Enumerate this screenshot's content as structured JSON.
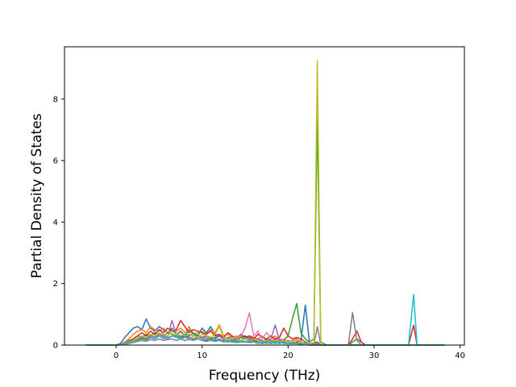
{
  "chart_data": {
    "type": "line",
    "title": "",
    "xlabel": "Frequency (THz)",
    "ylabel": "Partial Density of States",
    "xlim": [
      -6,
      40.5
    ],
    "ylim": [
      0,
      9.7
    ],
    "xticks": [
      0,
      10,
      20,
      30,
      40
    ],
    "yticks": [
      0,
      2,
      4,
      6,
      8
    ],
    "grid": false,
    "legend": "none",
    "x": [
      -3.5,
      -2,
      -1,
      0,
      0.5,
      1,
      1.5,
      2,
      2.5,
      3,
      3.5,
      4,
      4.5,
      5,
      5.5,
      6,
      6.5,
      7,
      7.5,
      8,
      8.5,
      9,
      9.5,
      10,
      10.5,
      11,
      11.5,
      12,
      12.5,
      13,
      13.5,
      14,
      14.5,
      15,
      15.5,
      16,
      16.5,
      17,
      17.5,
      18,
      18.5,
      19,
      19.5,
      20,
      20.5,
      21,
      21.5,
      22,
      22.5,
      23,
      23.4,
      23.8,
      24.5,
      25,
      26,
      27,
      27.5,
      28,
      28.5,
      29,
      30,
      31,
      32,
      33,
      34,
      34.6,
      35,
      36,
      37,
      38.2
    ],
    "series": [
      {
        "color": "#1f77b4",
        "values": [
          0,
          0,
          0,
          0,
          0.05,
          0.25,
          0.4,
          0.55,
          0.6,
          0.5,
          0.85,
          0.55,
          0.45,
          0.6,
          0.5,
          0.4,
          0.55,
          0.35,
          0.45,
          0.3,
          0.5,
          0.35,
          0.3,
          0.55,
          0.4,
          0.6,
          0.35,
          0.3,
          0.25,
          0.2,
          0.3,
          0.15,
          0.25,
          0.3,
          0.2,
          0.15,
          0.2,
          0.1,
          0.15,
          0.1,
          0.2,
          0.1,
          0.15,
          0.1,
          0.05,
          0.1,
          0.15,
          1.3,
          0.05,
          0.05,
          0.05,
          0,
          0,
          0,
          0,
          0,
          0,
          0,
          0,
          0,
          0,
          0,
          0,
          0,
          0,
          0,
          0,
          0,
          0,
          0
        ]
      },
      {
        "color": "#ff7f0e",
        "values": [
          0,
          0,
          0,
          0,
          0.02,
          0.1,
          0.2,
          0.35,
          0.45,
          0.5,
          0.4,
          0.6,
          0.5,
          0.45,
          0.55,
          0.4,
          0.5,
          0.45,
          0.55,
          0.4,
          0.6,
          0.35,
          0.4,
          0.45,
          0.35,
          0.5,
          0.4,
          0.65,
          0.3,
          0.35,
          0.2,
          0.3,
          0.25,
          0.2,
          0.3,
          0.25,
          0.2,
          0.3,
          0.15,
          0.2,
          0.3,
          0.15,
          0.2,
          0.1,
          0.15,
          0.2,
          0.1,
          0.05,
          0.05,
          0.05,
          0.05,
          0,
          0,
          0,
          0,
          0,
          0,
          0,
          0,
          0,
          0,
          0,
          0,
          0,
          0,
          0,
          0,
          0,
          0,
          0
        ]
      },
      {
        "color": "#2ca02c",
        "values": [
          0,
          0,
          0,
          0,
          0.02,
          0.05,
          0.15,
          0.2,
          0.3,
          0.25,
          0.35,
          0.3,
          0.4,
          0.35,
          0.3,
          0.4,
          0.35,
          0.3,
          0.25,
          0.35,
          0.3,
          0.4,
          0.3,
          0.25,
          0.3,
          0.2,
          0.25,
          0.3,
          0.2,
          0.25,
          0.2,
          0.15,
          0.25,
          0.2,
          0.15,
          0.2,
          0.15,
          0.1,
          0.2,
          0.15,
          0.1,
          0.2,
          0.15,
          0.3,
          0.85,
          1.35,
          0.4,
          0.2,
          0.1,
          0.2,
          7.35,
          0.1,
          0,
          0,
          0,
          0,
          0.1,
          0.2,
          0.1,
          0,
          0,
          0,
          0,
          0,
          0,
          0,
          0,
          0,
          0,
          0
        ]
      },
      {
        "color": "#d62728",
        "values": [
          0,
          0,
          0,
          0,
          0.02,
          0.05,
          0.1,
          0.2,
          0.3,
          0.4,
          0.3,
          0.45,
          0.35,
          0.5,
          0.4,
          0.55,
          0.45,
          0.5,
          0.8,
          0.6,
          0.4,
          0.5,
          0.45,
          0.4,
          0.35,
          0.45,
          0.3,
          0.35,
          0.25,
          0.4,
          0.3,
          0.2,
          0.35,
          0.25,
          0.3,
          0.2,
          0.35,
          0.25,
          0.2,
          0.3,
          0.2,
          0.25,
          0.55,
          0.3,
          0.2,
          0.25,
          0.2,
          0.1,
          0.05,
          0.05,
          0.1,
          0,
          0,
          0,
          0,
          0,
          0.2,
          0.45,
          0.1,
          0,
          0,
          0,
          0,
          0,
          0,
          0.65,
          0,
          0,
          0,
          0
        ]
      },
      {
        "color": "#9467bd",
        "values": [
          0,
          0,
          0,
          0,
          0.01,
          0.05,
          0.1,
          0.15,
          0.2,
          0.25,
          0.2,
          0.3,
          0.25,
          0.35,
          0.3,
          0.25,
          0.8,
          0.35,
          0.3,
          0.25,
          0.35,
          0.3,
          0.25,
          0.2,
          0.3,
          0.25,
          0.2,
          0.3,
          0.2,
          0.15,
          0.25,
          0.2,
          0.15,
          0.2,
          0.25,
          0.15,
          0.2,
          0.15,
          0.1,
          0.2,
          0.65,
          0.15,
          0.1,
          0.15,
          0.1,
          0.05,
          0.1,
          0.05,
          0.05,
          0,
          0.05,
          0,
          0,
          0,
          0,
          0,
          0,
          0,
          0,
          0,
          0,
          0,
          0,
          0,
          0,
          0,
          0,
          0,
          0,
          0
        ]
      },
      {
        "color": "#8c564b",
        "values": [
          0,
          0,
          0,
          0,
          0.01,
          0.03,
          0.08,
          0.12,
          0.18,
          0.22,
          0.2,
          0.25,
          0.2,
          0.3,
          0.25,
          0.2,
          0.3,
          0.25,
          0.2,
          0.3,
          0.25,
          0.2,
          0.25,
          0.2,
          0.15,
          0.2,
          0.15,
          0.2,
          0.15,
          0.1,
          0.15,
          0.1,
          0.15,
          0.1,
          0.1,
          0.15,
          0.1,
          0.05,
          0.1,
          0.05,
          0.1,
          0.05,
          0.1,
          0.05,
          0.05,
          0.1,
          0.05,
          0.05,
          0,
          0,
          0,
          0,
          0,
          0,
          0,
          0,
          0,
          0,
          0,
          0,
          0,
          0,
          0,
          0,
          0,
          0,
          0,
          0,
          0,
          0
        ]
      },
      {
        "color": "#e377c2",
        "values": [
          0,
          0,
          0,
          0,
          0.01,
          0.03,
          0.07,
          0.1,
          0.15,
          0.2,
          0.15,
          0.25,
          0.2,
          0.3,
          0.2,
          0.25,
          0.3,
          0.25,
          0.2,
          0.25,
          0.2,
          0.3,
          0.25,
          0.2,
          0.25,
          0.15,
          0.2,
          0.15,
          0.2,
          0.15,
          0.2,
          0.25,
          0.3,
          0.55,
          1.05,
          0.3,
          0.45,
          0.2,
          0.4,
          0.25,
          0.15,
          0.2,
          0.15,
          0.1,
          0.15,
          0.05,
          0.1,
          0.05,
          0.05,
          0,
          0.05,
          0,
          0,
          0,
          0,
          0,
          0,
          0,
          0,
          0,
          0,
          0,
          0,
          0,
          0,
          0,
          0,
          0,
          0,
          0
        ]
      },
      {
        "color": "#7f7f7f",
        "values": [
          0,
          0,
          0,
          0,
          0.01,
          0.02,
          0.05,
          0.08,
          0.12,
          0.15,
          0.12,
          0.18,
          0.15,
          0.2,
          0.15,
          0.18,
          0.2,
          0.15,
          0.2,
          0.15,
          0.18,
          0.15,
          0.2,
          0.15,
          0.12,
          0.15,
          0.12,
          0.15,
          0.1,
          0.12,
          0.1,
          0.08,
          0.1,
          0.12,
          0.08,
          0.1,
          0.08,
          0.05,
          0.08,
          0.05,
          0.08,
          0.05,
          0.1,
          0.05,
          0.05,
          0.05,
          0.05,
          0.05,
          0.05,
          0,
          0.6,
          0,
          0,
          0,
          0,
          0,
          1.05,
          0.15,
          0,
          0,
          0,
          0,
          0,
          0,
          0,
          0,
          0,
          0,
          0,
          0
        ]
      },
      {
        "color": "#bcbd22",
        "values": [
          0,
          0,
          0,
          0,
          0.01,
          0.03,
          0.08,
          0.15,
          0.22,
          0.3,
          0.25,
          0.35,
          0.3,
          0.4,
          0.35,
          0.3,
          0.45,
          0.35,
          0.4,
          0.3,
          0.35,
          0.3,
          0.25,
          0.35,
          0.3,
          0.25,
          0.35,
          0.6,
          0.25,
          0.2,
          0.25,
          0.2,
          0.15,
          0.2,
          0.15,
          0.2,
          0.15,
          0.1,
          0.15,
          0.1,
          0.15,
          0.1,
          0.15,
          0.1,
          0.1,
          0.15,
          0.1,
          0.05,
          0.05,
          0,
          9.25,
          0,
          0,
          0,
          0,
          0,
          0,
          0,
          0,
          0,
          0,
          0,
          0,
          0,
          0,
          0,
          0,
          0,
          0,
          0
        ]
      },
      {
        "color": "#17becf",
        "values": [
          0,
          0,
          0,
          0,
          0.01,
          0.03,
          0.06,
          0.1,
          0.15,
          0.2,
          0.15,
          0.25,
          0.2,
          0.3,
          0.25,
          0.2,
          0.3,
          0.25,
          0.2,
          0.25,
          0.2,
          0.15,
          0.2,
          0.15,
          0.2,
          0.15,
          0.2,
          0.15,
          0.1,
          0.15,
          0.1,
          0.15,
          0.1,
          0.1,
          0.15,
          0.1,
          0.05,
          0.1,
          0.05,
          0.1,
          0.05,
          0.1,
          0.05,
          0.05,
          0.05,
          0.05,
          0,
          0.05,
          0,
          0,
          0.05,
          0,
          0,
          0,
          0,
          0,
          0,
          0,
          0,
          0,
          0,
          0,
          0,
          0,
          0,
          1.65,
          0,
          0,
          0,
          0
        ]
      }
    ]
  }
}
